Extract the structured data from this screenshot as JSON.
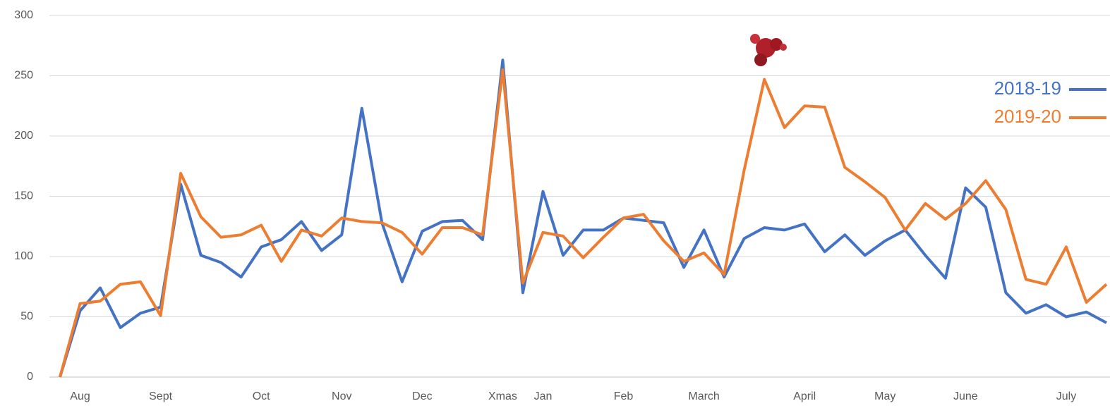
{
  "chart_data": {
    "type": "line",
    "categories": [
      null,
      "Aug",
      null,
      null,
      null,
      "Sept",
      null,
      null,
      null,
      null,
      "Oct",
      null,
      null,
      null,
      "Nov",
      null,
      null,
      null,
      "Dec",
      null,
      null,
      null,
      "Xmas",
      null,
      "Jan",
      null,
      null,
      null,
      "Feb",
      null,
      null,
      null,
      "March",
      null,
      null,
      null,
      null,
      "April",
      null,
      null,
      null,
      "May",
      null,
      null,
      null,
      "June",
      null,
      null,
      null,
      null,
      "July",
      null,
      null
    ],
    "series": [
      {
        "name": "2018-19",
        "color": "#4472c4",
        "values": [
          0,
          55,
          74,
          41,
          53,
          58,
          160,
          101,
          95,
          83,
          108,
          114,
          129,
          105,
          118,
          223,
          128,
          79,
          121,
          129,
          130,
          114,
          263,
          70,
          154,
          101,
          122,
          122,
          132,
          130,
          128,
          91,
          122,
          83,
          115,
          124,
          122,
          127,
          104,
          118,
          101,
          113,
          122,
          101,
          82,
          157,
          141,
          70,
          53,
          60,
          50,
          54,
          45
        ]
      },
      {
        "name": "2019-20",
        "color": "#ed7d31",
        "values": [
          0,
          61,
          63,
          77,
          79,
          51,
          169,
          133,
          116,
          118,
          126,
          96,
          122,
          117,
          132,
          129,
          128,
          120,
          102,
          124,
          124,
          118,
          255,
          78,
          120,
          117,
          99,
          116,
          132,
          135,
          113,
          96,
          103,
          85,
          172,
          247,
          207,
          225,
          224,
          174,
          162,
          149,
          122,
          144,
          131,
          144,
          163,
          139,
          81,
          77,
          108,
          62,
          77
        ]
      }
    ],
    "ylim": [
      0,
      300
    ],
    "yticks": [
      0,
      50,
      100,
      150,
      200,
      250,
      300
    ],
    "grid": true,
    "legend": "right"
  }
}
